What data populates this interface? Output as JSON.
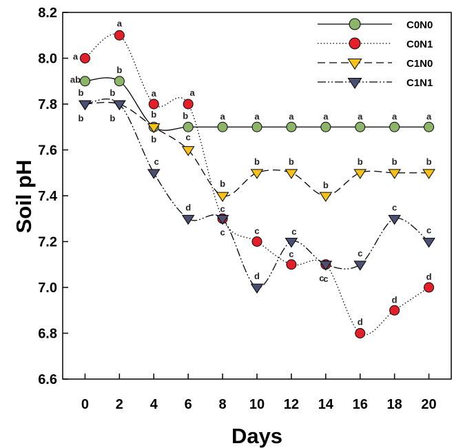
{
  "chart_data": {
    "type": "line",
    "title": "",
    "xlabel": "Days",
    "ylabel": "Soil pH",
    "x": [
      0,
      2,
      4,
      6,
      8,
      10,
      12,
      14,
      16,
      18,
      20
    ],
    "xticks": [
      "0",
      "2",
      "4",
      "6",
      "8",
      "10",
      "12",
      "14",
      "16",
      "18",
      "20"
    ],
    "xlim": [
      -1.3,
      21.3
    ],
    "ylim": [
      6.6,
      8.2
    ],
    "yticks": [
      "6.6",
      "6.8",
      "7.0",
      "7.2",
      "7.4",
      "7.6",
      "7.8",
      "8.0",
      "8.2"
    ],
    "grid": false,
    "legend_position": "top-right",
    "series": [
      {
        "name": "C0N0",
        "values": [
          7.9,
          7.9,
          7.7,
          7.7,
          7.7,
          7.7,
          7.7,
          7.7,
          7.7,
          7.7,
          7.7
        ],
        "marker": "circle",
        "dash": "solid",
        "color": "#8db56a",
        "labels": [
          "ab",
          "b",
          "b",
          "b",
          "a",
          "a",
          "a",
          "a",
          "a",
          "a",
          "a"
        ]
      },
      {
        "name": "C0N1",
        "values": [
          8.0,
          8.1,
          7.8,
          7.8,
          7.3,
          7.2,
          7.1,
          7.1,
          6.8,
          6.9,
          7.0
        ],
        "marker": "circle",
        "dash": "dotted",
        "color": "#e3202a",
        "labels": [
          "a",
          "a",
          "a",
          "a",
          "c",
          "c",
          "c",
          "c",
          "d",
          "d",
          "d"
        ]
      },
      {
        "name": "C1N0",
        "values": [
          7.8,
          7.8,
          7.7,
          7.6,
          7.4,
          7.5,
          7.5,
          7.4,
          7.5,
          7.5,
          7.5
        ],
        "marker": "triangle-down",
        "dash": "dashed",
        "color": "#f5c218",
        "labels": [
          "b",
          "b",
          "b",
          "c",
          "b",
          "b",
          "b",
          "b",
          "b",
          "b",
          "b"
        ]
      },
      {
        "name": "C1N1",
        "values": [
          7.8,
          7.8,
          7.5,
          7.3,
          7.3,
          7.0,
          7.2,
          7.1,
          7.1,
          7.3,
          7.2
        ],
        "marker": "triangle-down",
        "dash": "dash-dot-dot",
        "color": "#4b4f72",
        "labels": [
          "b",
          "b",
          "c",
          "d",
          "c",
          "d",
          "c",
          "c",
          "c",
          "c",
          "c"
        ]
      }
    ]
  }
}
